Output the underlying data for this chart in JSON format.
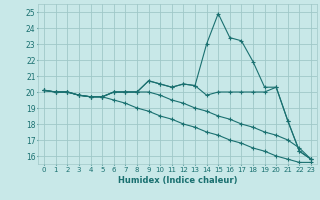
{
  "title": "",
  "xlabel": "Humidex (Indice chaleur)",
  "ylabel": "",
  "background_color": "#c8e8e8",
  "grid_color": "#a0c8c8",
  "line_color": "#1a7070",
  "xlim": [
    -0.5,
    23.5
  ],
  "ylim": [
    15.5,
    25.5
  ],
  "xticks": [
    0,
    1,
    2,
    3,
    4,
    5,
    6,
    7,
    8,
    9,
    10,
    11,
    12,
    13,
    14,
    15,
    16,
    17,
    18,
    19,
    20,
    21,
    22,
    23
  ],
  "yticks": [
    16,
    17,
    18,
    19,
    20,
    21,
    22,
    23,
    24,
    25
  ],
  "series": [
    [
      20.1,
      20.0,
      20.0,
      19.8,
      19.7,
      19.7,
      20.0,
      20.0,
      20.0,
      20.7,
      20.5,
      20.3,
      20.5,
      20.4,
      23.0,
      24.9,
      23.4,
      23.2,
      21.9,
      20.3,
      20.3,
      18.2,
      16.3,
      15.8
    ],
    [
      20.1,
      20.0,
      20.0,
      19.8,
      19.7,
      19.7,
      20.0,
      20.0,
      20.0,
      20.7,
      20.5,
      20.3,
      20.5,
      20.4,
      19.8,
      20.0,
      20.0,
      20.0,
      20.0,
      20.0,
      20.3,
      18.2,
      16.3,
      15.8
    ],
    [
      20.1,
      20.0,
      20.0,
      19.8,
      19.7,
      19.7,
      20.0,
      20.0,
      20.0,
      20.0,
      19.8,
      19.5,
      19.3,
      19.0,
      18.8,
      18.5,
      18.3,
      18.0,
      17.8,
      17.5,
      17.3,
      17.0,
      16.5,
      15.8
    ],
    [
      20.1,
      20.0,
      20.0,
      19.8,
      19.7,
      19.7,
      19.5,
      19.3,
      19.0,
      18.8,
      18.5,
      18.3,
      18.0,
      17.8,
      17.5,
      17.3,
      17.0,
      16.8,
      16.5,
      16.3,
      16.0,
      15.8,
      15.6,
      15.6
    ]
  ]
}
